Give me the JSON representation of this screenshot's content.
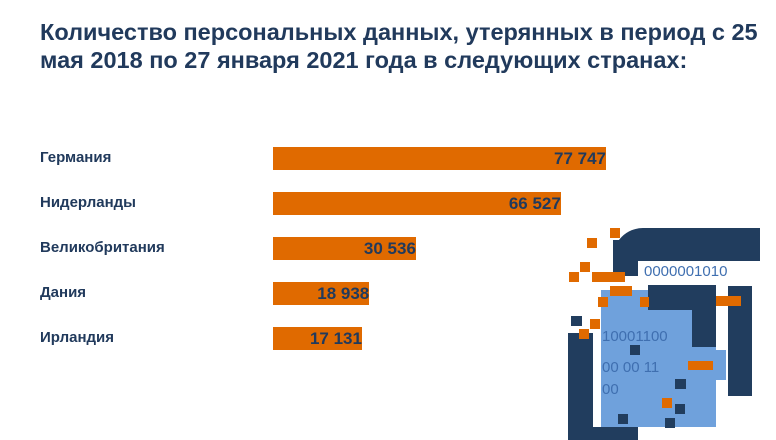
{
  "title": "Количество персональных данных, утерянных в период с 25 мая 2018 по 27 января 2021 года в следующих странах:",
  "chart_data": {
    "type": "bar",
    "orientation": "horizontal",
    "title": "Количество персональных данных, утерянных в период с 25 мая 2018 по 27 января 2021 года в следующих странах:",
    "categories": [
      "Германия",
      "Нидерланды",
      "Великобритания",
      "Дания",
      "Ирландия"
    ],
    "values": [
      77747,
      66527,
      30536,
      18938,
      17131
    ],
    "value_labels": [
      "77 747",
      "66 527",
      "30 536",
      "18 938",
      "17 131"
    ],
    "bar_color": "#e06a00",
    "label_color": "#213a5c",
    "xlabel": "",
    "ylabel": "",
    "grid": false
  },
  "illustration": {
    "binary_lines": [
      "0000001010",
      "10001100",
      "00 00 11",
      "00"
    ]
  }
}
